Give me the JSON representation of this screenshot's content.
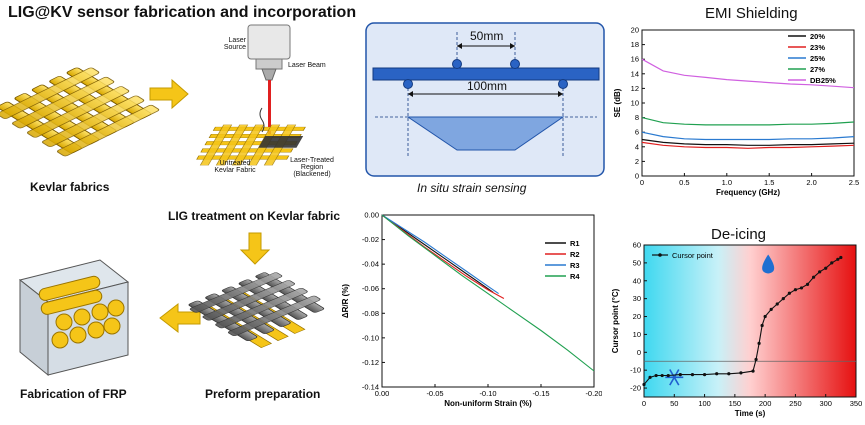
{
  "header": {
    "title": "LIG@KV sensor fabrication and incorporation"
  },
  "fabrication": {
    "kevlar_label": "Kevlar fabrics",
    "laser_source": "Laser\nSource",
    "laser_beam": "Laser Beam",
    "untreated": "Untreated\nKevlar Fabric",
    "laser_treated": "Laser-Treated\nRegion\n(Blackened)",
    "lig_treatment": "LIG treatment on Kevlar fabric",
    "frp_label": "Fabrication of FRP",
    "preform_label": "Preform preparation"
  },
  "strain_setup": {
    "top_span": "50mm",
    "bottom_span": "100mm",
    "caption": "In situ strain sensing"
  },
  "colors": {
    "kevlar": "#f5c518",
    "accent_blue": "#2255aa",
    "setup_bg": "#dfe8f7"
  },
  "chart_data": [
    {
      "id": "emi",
      "type": "line",
      "title": "EMI Shielding",
      "xlabel": "Frequency (GHz)",
      "ylabel": "SE (dB)",
      "xlim": [
        0,
        2.5
      ],
      "ylim": [
        0,
        20
      ],
      "xticks": [
        "0",
        "0.5",
        "1.0",
        "1.5",
        "2.0",
        "2.5"
      ],
      "yticks": [
        "0",
        "2",
        "4",
        "6",
        "8",
        "10",
        "12",
        "14",
        "16",
        "18",
        "20"
      ],
      "legend_position": "top-right",
      "x": [
        0,
        0.25,
        0.5,
        0.75,
        1.0,
        1.25,
        1.5,
        1.75,
        2.0,
        2.25,
        2.5
      ],
      "series": [
        {
          "name": "20%",
          "color": "#111111",
          "values": [
            5.0,
            4.6,
            4.4,
            4.3,
            4.3,
            4.2,
            4.2,
            4.3,
            4.3,
            4.4,
            4.5
          ]
        },
        {
          "name": "23%",
          "color": "#e02020",
          "values": [
            4.6,
            4.2,
            4.0,
            3.9,
            3.9,
            3.8,
            3.9,
            3.9,
            4.0,
            4.1,
            4.2
          ]
        },
        {
          "name": "25%",
          "color": "#2a7ad0",
          "values": [
            6.0,
            5.4,
            5.1,
            5.0,
            5.0,
            5.0,
            5.0,
            5.1,
            5.1,
            5.2,
            5.4
          ]
        },
        {
          "name": "27%",
          "color": "#20a050",
          "values": [
            8.0,
            7.3,
            7.1,
            7.0,
            7.0,
            7.0,
            7.0,
            7.1,
            7.1,
            7.2,
            7.4
          ]
        },
        {
          "name": "DB25%",
          "color": "#d060e0",
          "values": [
            16.0,
            14.4,
            13.8,
            13.5,
            13.2,
            13.0,
            12.8,
            12.6,
            12.5,
            12.3,
            12.1
          ]
        }
      ]
    },
    {
      "id": "strain",
      "type": "line",
      "title": "",
      "xlabel": "Non-uniform Strain (%)",
      "ylabel": "ΔR/R (%)",
      "xlim": [
        0,
        -0.2
      ],
      "ylim": [
        -0.14,
        0
      ],
      "xticks": [
        "0.00",
        "-0.05",
        "-0.10",
        "-0.15",
        "-0.20"
      ],
      "yticks": [
        "0.00",
        "-0.02",
        "-0.04",
        "-0.06",
        "-0.08",
        "-0.10",
        "-0.12",
        "-0.14"
      ],
      "legend_position": "top-right",
      "series": [
        {
          "name": "R1",
          "color": "#111111",
          "x": [
            0,
            -0.02,
            -0.04,
            -0.06,
            -0.08,
            -0.1,
            -0.105
          ],
          "values": [
            0,
            -0.012,
            -0.024,
            -0.036,
            -0.048,
            -0.06,
            -0.063
          ]
        },
        {
          "name": "R2",
          "color": "#e02020",
          "x": [
            0,
            -0.02,
            -0.04,
            -0.06,
            -0.08,
            -0.1,
            -0.115
          ],
          "values": [
            0,
            -0.013,
            -0.026,
            -0.038,
            -0.05,
            -0.061,
            -0.068
          ]
        },
        {
          "name": "R3",
          "color": "#2a7ad0",
          "x": [
            0,
            -0.02,
            -0.04,
            -0.06,
            -0.08,
            -0.1,
            -0.11
          ],
          "values": [
            0,
            -0.011,
            -0.022,
            -0.034,
            -0.046,
            -0.058,
            -0.064
          ]
        },
        {
          "name": "R4",
          "color": "#20a050",
          "x": [
            0,
            -0.025,
            -0.05,
            -0.075,
            -0.1,
            -0.125,
            -0.15,
            -0.175,
            -0.2
          ],
          "values": [
            0,
            -0.017,
            -0.033,
            -0.049,
            -0.064,
            -0.079,
            -0.094,
            -0.11,
            -0.127
          ]
        }
      ]
    },
    {
      "id": "deicing",
      "type": "line",
      "title": "De-icing",
      "xlabel": "Time (s)",
      "ylabel": "Cursor point (°C)",
      "xlim": [
        0,
        350
      ],
      "ylim": [
        -25,
        60
      ],
      "xticks": [
        "0",
        "50",
        "100",
        "150",
        "200",
        "250",
        "300",
        "350"
      ],
      "yticks": [
        "-20",
        "-10",
        "0",
        "10",
        "20",
        "30",
        "40",
        "50",
        "60"
      ],
      "legend_position": "top-left",
      "series": [
        {
          "name": "Cursor point",
          "color": "#111111",
          "x": [
            0,
            10,
            20,
            30,
            40,
            60,
            80,
            100,
            120,
            140,
            160,
            180,
            185,
            190,
            195,
            200,
            210,
            220,
            230,
            240,
            250,
            260,
            270,
            280,
            290,
            300,
            310,
            320,
            325
          ],
          "values": [
            -18,
            -14,
            -13,
            -13,
            -13,
            -12.5,
            -12.5,
            -12.5,
            -12,
            -12,
            -11.5,
            -10.5,
            -4,
            5,
            15,
            20,
            24,
            27,
            30,
            33,
            35,
            36,
            38,
            42,
            45,
            47,
            50,
            52,
            53
          ]
        }
      ]
    }
  ]
}
